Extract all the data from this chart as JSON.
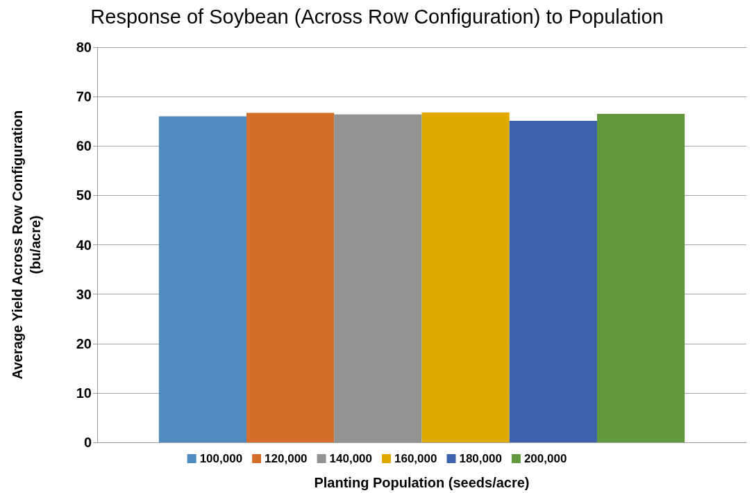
{
  "chart_data": {
    "type": "bar",
    "title": "Response of Soybean (Across Row Configuration) to Population",
    "xlabel": "Planting Population (seeds/acre)",
    "ylabel": "Average Yield Across Row Configuration\n(bu/acre)",
    "categories": [
      null
    ],
    "series": [
      {
        "name": "100,000",
        "color": "#4f8bbd",
        "values": [
          66.0
        ]
      },
      {
        "name": "120,000",
        "color": "#d46f2b",
        "values": [
          66.7
        ]
      },
      {
        "name": "140,000",
        "color": "#939393",
        "values": [
          66.4
        ]
      },
      {
        "name": "160,000",
        "color": "#e0aa00",
        "values": [
          66.8
        ]
      },
      {
        "name": "180,000",
        "color": "#3d63ac",
        "values": [
          65.1
        ]
      },
      {
        "name": "200,000",
        "color": "#62993e",
        "values": [
          66.5
        ]
      }
    ],
    "ylim": [
      0,
      80
    ],
    "yticks": [
      0,
      10,
      20,
      30,
      40,
      50,
      60,
      70,
      80
    ],
    "grid": "y",
    "legend": "bottom"
  }
}
